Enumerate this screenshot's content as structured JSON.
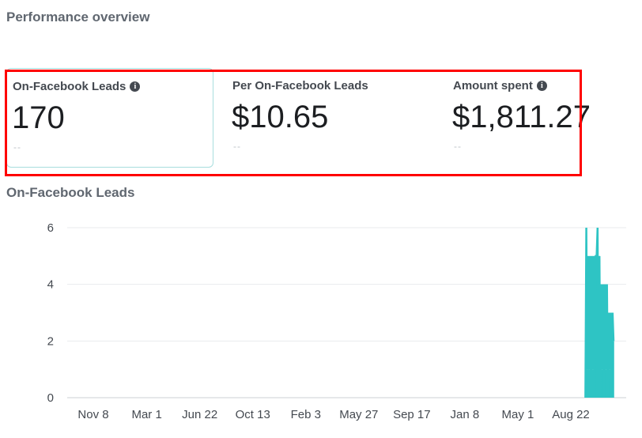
{
  "page_title": "Performance overview",
  "metrics": [
    {
      "label": "On-Facebook Leads",
      "value": "170",
      "comparison": "--",
      "info_icon": true,
      "selected": true
    },
    {
      "label": "Per On-Facebook Leads",
      "value": "$10.65",
      "comparison": "--",
      "info_icon": false,
      "selected": false
    },
    {
      "label": "Amount spent",
      "value": "$1,811.27",
      "comparison": "--",
      "info_icon": true,
      "selected": false
    }
  ],
  "info_icon_glyph": "i",
  "chart_data": {
    "type": "line",
    "title": "On-Facebook Leads",
    "color": "#2ec4c4",
    "grid": true,
    "ylim": [
      0,
      6
    ],
    "yticks": [
      0,
      2,
      4,
      6
    ],
    "xticks": [
      {
        "date": "2019-11-08",
        "label": "Nov 8"
      },
      {
        "date": "2020-03-01",
        "label": "Mar 1"
      },
      {
        "date": "2020-06-22",
        "label": "Jun 22"
      },
      {
        "date": "2020-10-13",
        "label": "Oct 13"
      },
      {
        "date": "2021-02-03",
        "label": "Feb 3"
      },
      {
        "date": "2021-05-27",
        "label": "May 27"
      },
      {
        "date": "2021-09-17",
        "label": "Sep 17"
      },
      {
        "date": "2022-01-08",
        "label": "Jan 8"
      },
      {
        "date": "2022-05-01",
        "label": "May 1"
      },
      {
        "date": "2022-08-22",
        "label": "Aug 22"
      }
    ],
    "x": [
      "2022-09-22",
      "2022-09-24",
      "2022-09-26",
      "2022-09-28",
      "2022-09-30",
      "2022-10-02",
      "2022-10-04",
      "2022-10-06",
      "2022-10-08",
      "2022-10-10",
      "2022-10-12",
      "2022-10-14",
      "2022-10-16",
      "2022-10-18",
      "2022-10-20",
      "2022-10-22",
      "2022-10-24",
      "2022-10-26",
      "2022-10-28",
      "2022-10-30",
      "2022-11-01",
      "2022-11-03",
      "2022-11-05",
      "2022-11-07",
      "2022-11-09",
      "2022-11-11",
      "2022-11-13",
      "2022-11-15",
      "2022-11-17",
      "2022-11-19",
      "2022-11-21"
    ],
    "values": [
      0,
      6,
      1,
      5,
      1,
      5,
      0,
      5,
      1,
      5,
      0,
      5,
      5,
      6,
      0,
      5,
      0,
      4,
      1,
      4,
      0,
      4,
      1,
      4,
      0,
      3,
      1,
      3,
      0,
      3,
      2
    ]
  }
}
